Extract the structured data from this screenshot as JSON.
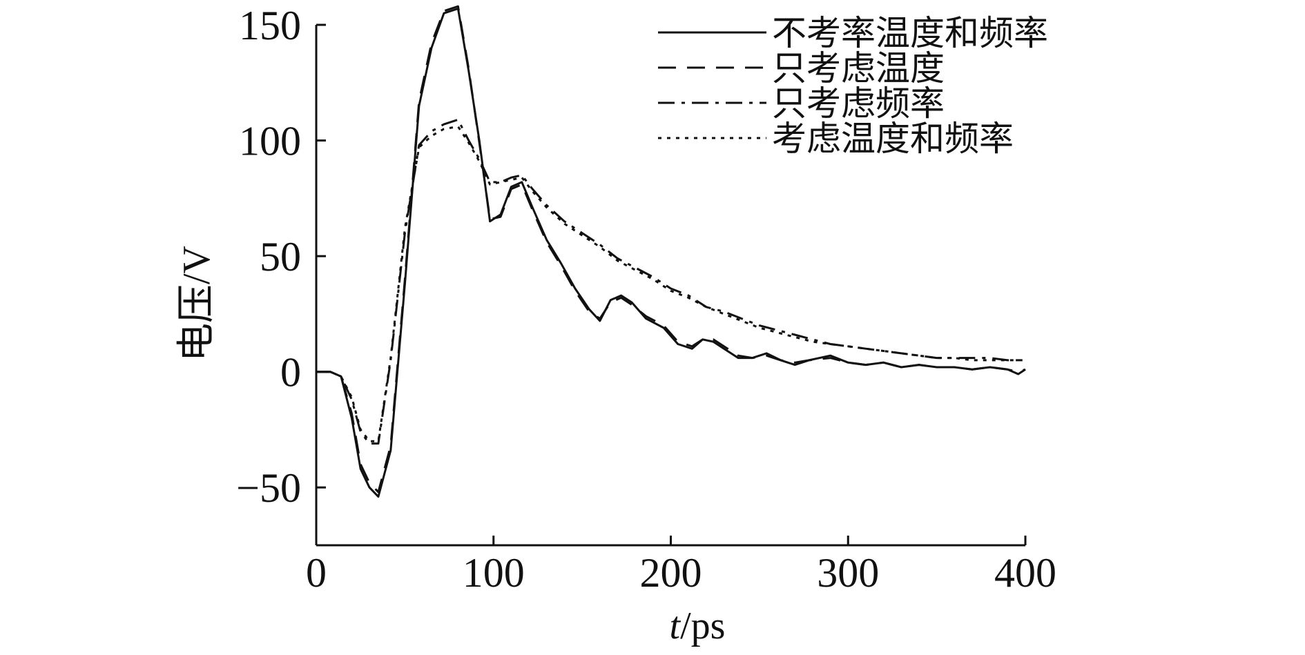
{
  "chart_data": {
    "type": "line",
    "title": "",
    "xlabel_italic": "t",
    "xlabel_rest": "/ps",
    "ylabel": "电压/V",
    "xlim": [
      0,
      400
    ],
    "ylim": [
      -75,
      150
    ],
    "xticks": [
      0,
      100,
      200,
      300,
      400
    ],
    "yticks": [
      -50,
      0,
      50,
      100,
      150
    ],
    "xtick_labels": [
      "0",
      "100",
      "200",
      "300",
      "400"
    ],
    "ytick_labels": [
      "−50",
      "0",
      "50",
      "100",
      "150"
    ],
    "grid": false,
    "legend_position": "top-right",
    "series": [
      {
        "name": "不考率温度和频率",
        "style": "solid",
        "x": [
          0,
          8,
          14,
          20,
          25,
          30,
          35,
          42,
          50,
          58,
          65,
          72,
          80,
          86,
          92,
          98,
          104,
          110,
          116,
          122,
          130,
          138,
          146,
          154,
          160,
          166,
          172,
          178,
          186,
          196,
          204,
          212,
          218,
          224,
          230,
          238,
          246,
          254,
          262,
          270,
          278,
          290,
          300,
          310,
          320,
          330,
          340,
          350,
          360,
          370,
          380,
          390,
          396,
          400
        ],
        "y": [
          0,
          0,
          -2,
          -20,
          -42,
          -50,
          -54,
          -34,
          38,
          115,
          140,
          155,
          157,
          130,
          100,
          65,
          68,
          80,
          82,
          71,
          57,
          47,
          36,
          27,
          22,
          31,
          33,
          30,
          23,
          19,
          12,
          10,
          14,
          13,
          10,
          6,
          6,
          8,
          5,
          3,
          5,
          7,
          4,
          3,
          4,
          2,
          3,
          2,
          2,
          1,
          2,
          1,
          -1,
          1
        ]
      },
      {
        "name": "只考虑温度",
        "style": "dashed",
        "x": [
          0,
          8,
          14,
          20,
          25,
          30,
          35,
          42,
          50,
          58,
          65,
          72,
          80,
          86,
          92,
          98,
          104,
          110,
          116,
          122,
          130,
          138,
          146,
          154,
          160,
          166,
          172,
          178,
          186,
          196,
          204,
          212,
          218,
          224,
          230,
          238,
          246,
          254,
          262,
          270,
          278,
          290,
          300,
          310,
          320,
          330,
          340,
          350,
          360,
          370,
          380,
          390,
          396,
          400
        ],
        "y": [
          0,
          0,
          -2,
          -18,
          -40,
          -48,
          -52,
          -32,
          40,
          117,
          142,
          156,
          158,
          131,
          99,
          66,
          67,
          79,
          81,
          70,
          56,
          46,
          35,
          26,
          23,
          30,
          32,
          29,
          24,
          20,
          13,
          11,
          14,
          14,
          11,
          7,
          6,
          7,
          5,
          4,
          5,
          6,
          4,
          3,
          4,
          2,
          3,
          2,
          2,
          1,
          2,
          1,
          0,
          1
        ]
      },
      {
        "name": "只考虑频率",
        "style": "dashdot",
        "x": [
          0,
          8,
          14,
          20,
          25,
          30,
          35,
          42,
          50,
          58,
          65,
          72,
          80,
          86,
          92,
          98,
          104,
          110,
          116,
          122,
          130,
          140,
          150,
          160,
          170,
          180,
          190,
          200,
          210,
          220,
          230,
          240,
          250,
          260,
          270,
          280,
          290,
          300,
          310,
          320,
          330,
          340,
          350,
          360,
          370,
          380,
          390,
          400
        ],
        "y": [
          0,
          0,
          -2,
          -12,
          -26,
          -31,
          -31,
          5,
          60,
          98,
          104,
          107,
          109,
          100,
          92,
          82,
          82,
          84,
          85,
          79,
          72,
          65,
          60,
          55,
          49,
          45,
          41,
          36,
          33,
          28,
          26,
          23,
          20,
          18,
          16,
          14,
          12,
          11,
          10,
          9,
          8,
          7,
          6,
          6,
          6,
          6,
          5,
          5
        ]
      },
      {
        "name": "考虑温度和频率",
        "style": "dotted",
        "x": [
          0,
          8,
          14,
          20,
          25,
          30,
          35,
          42,
          50,
          58,
          65,
          72,
          80,
          86,
          92,
          98,
          104,
          110,
          116,
          122,
          130,
          140,
          150,
          160,
          170,
          180,
          190,
          200,
          210,
          220,
          230,
          240,
          250,
          260,
          270,
          280,
          290,
          300,
          310,
          320,
          330,
          340,
          350,
          360,
          370,
          380,
          390,
          400
        ],
        "y": [
          0,
          0,
          -2,
          -11,
          -25,
          -30,
          -30,
          6,
          62,
          97,
          102,
          105,
          106,
          99,
          91,
          81,
          82,
          83,
          84,
          78,
          71,
          64,
          59,
          54,
          48,
          44,
          40,
          35,
          32,
          28,
          25,
          22,
          19,
          17,
          15,
          13,
          12,
          11,
          10,
          9,
          8,
          7,
          6,
          6,
          5,
          5,
          5,
          5
        ]
      }
    ]
  }
}
